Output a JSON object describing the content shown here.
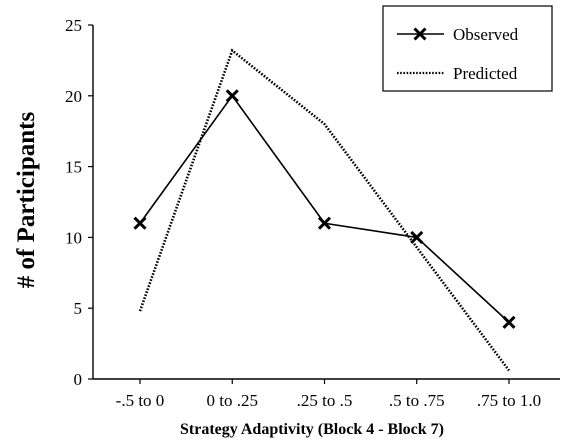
{
  "chart_data": {
    "type": "line",
    "title": "",
    "xlabel": "Strategy Adaptivity (Block 4 - Block 7)",
    "ylabel": "# of Participants",
    "categories": [
      "-.5 to 0",
      "0 to .25",
      ".25 to .5",
      ".5 to .75",
      ".75 to 1.0"
    ],
    "ylim": [
      0,
      25
    ],
    "yticks": [
      0,
      5,
      10,
      15,
      20,
      25
    ],
    "grid": false,
    "legend_position": "top-right",
    "series": [
      {
        "name": "Observed",
        "values": [
          11,
          20,
          11,
          10,
          4
        ],
        "style": "solid",
        "marker": "x",
        "color": "#000000"
      },
      {
        "name": "Predicted",
        "values": [
          4.8,
          23.2,
          18,
          9.3,
          0.6
        ],
        "style": "dotted",
        "marker": "none",
        "color": "#000000"
      }
    ]
  }
}
